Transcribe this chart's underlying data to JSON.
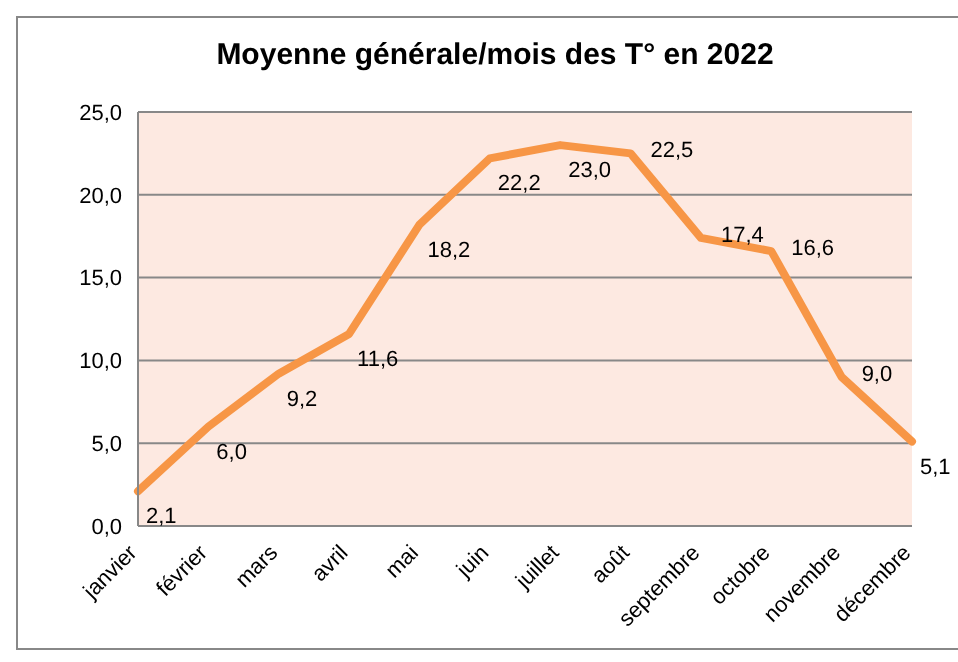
{
  "chart_data": {
    "type": "line",
    "title": "Moyenne générale/mois des T° en 2022",
    "categories": [
      "janvier",
      "février",
      "mars",
      "avril",
      "mai",
      "juin",
      "juillet",
      "août",
      "septembre",
      "octobre",
      "novembre",
      "décembre"
    ],
    "series": [
      {
        "color": "#f79646",
        "values": [
          2.1,
          6.0,
          9.2,
          11.6,
          18.2,
          22.2,
          23.0,
          22.5,
          17.4,
          16.6,
          9.0,
          5.1
        ],
        "value_labels": [
          "2,1",
          "6,0",
          "9,2",
          "11,6",
          "18,2",
          "22,2",
          "23,0",
          "22,5",
          "17,4",
          "16,6",
          "9,0",
          "5,1"
        ]
      }
    ],
    "ylim": [
      0,
      25
    ],
    "yticks": [
      {
        "value": 0,
        "label": "0,0"
      },
      {
        "value": 5,
        "label": "5,0"
      },
      {
        "value": 10,
        "label": "10,0"
      },
      {
        "value": 15,
        "label": "15,0"
      },
      {
        "value": 20,
        "label": "20,0"
      },
      {
        "value": 25,
        "label": "25,0"
      }
    ],
    "grid": "y",
    "legend": false,
    "marker": "none",
    "line_style": "solid"
  }
}
